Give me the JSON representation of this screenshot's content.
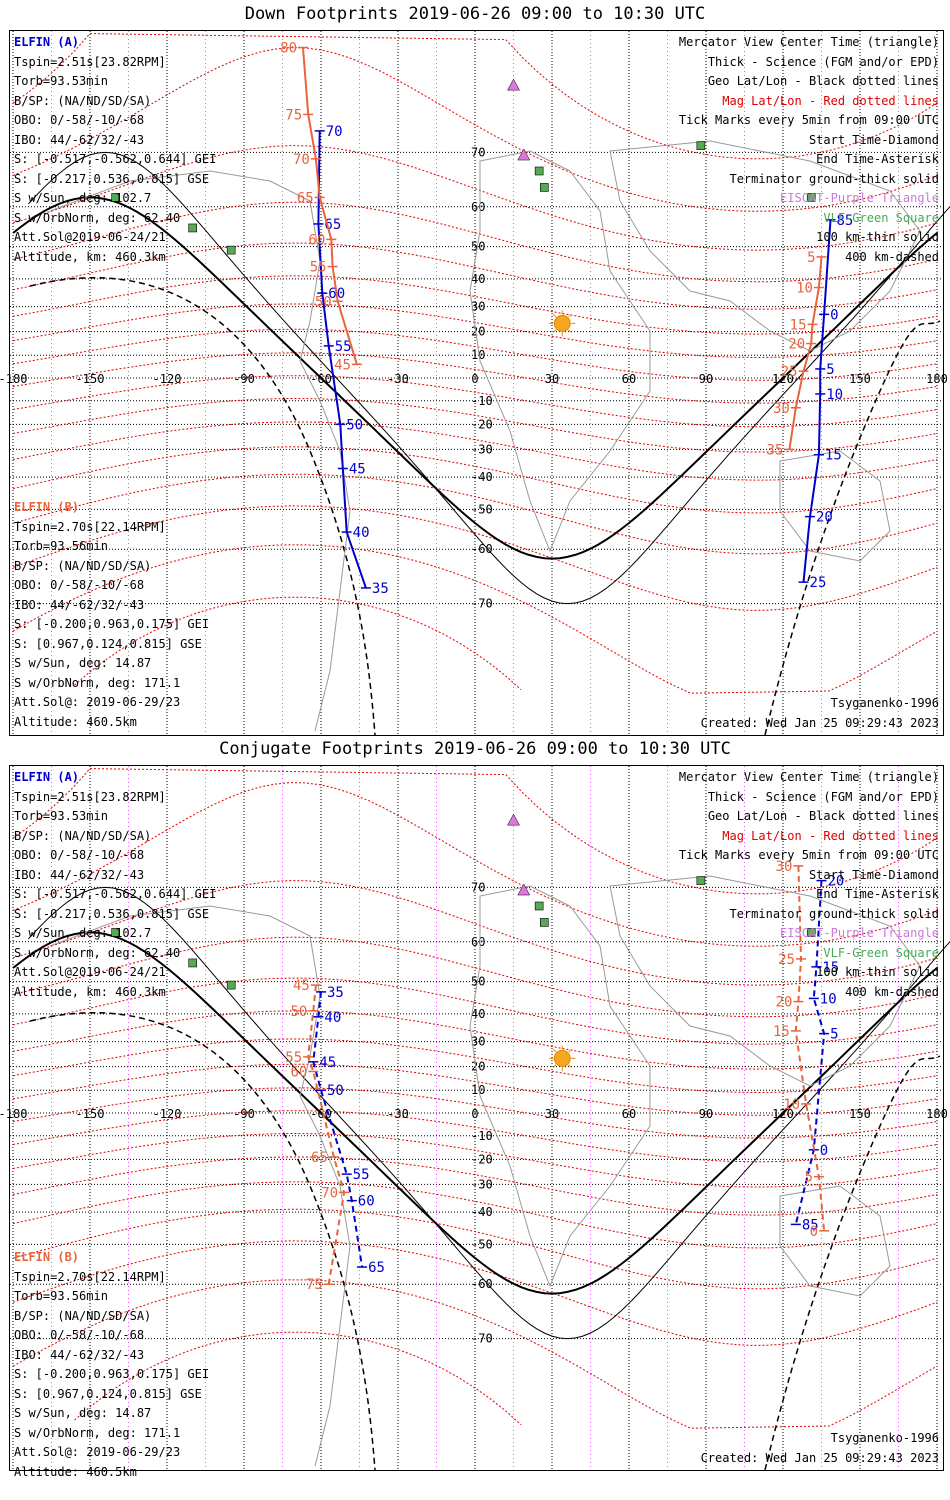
{
  "panels": [
    {
      "title": "Down Footprints 2019-06-26 09:00 to 10:30 UTC",
      "elfin_a": {
        "name": "ELFIN (A)",
        "lines": [
          "Tspin=2.51s[23.82RPM]",
          "Torb=93.53min",
          "B/SP: (NA/ND/SD/SA)",
          "OBO: 0/-58/-10/-68",
          "IBO: 44/-62/32/-43",
          "S: [-0.517,-0.562,0.644] GEI",
          "S: [-0.217,0.536,0.815] GSE",
          "S w/Sun, deg: 102.7",
          "S w/OrbNorm, deg: 62.40",
          "Att.Sol@2019-06-24/21",
          "Altitude, km: 460.3km"
        ]
      },
      "elfin_b": {
        "name": "ELFIN (B)",
        "lines": [
          "Tspin=2.70s[22.14RPM]",
          "Torb=93.56min",
          "B/SP: (NA/ND/SD/SA)",
          "OBO: 0/-58/-10/-68",
          "IBO: 44/-62/32/-43",
          "S: [-0.200,0.963,0.175] GEI",
          "S: [0.967,0.124,0.815] GSE",
          "S w/Sun, deg: 14.87",
          "S w/OrbNorm, deg: 171.1",
          "Att.Sol@: 2019-06-29/23",
          "Altitude: 460.5km"
        ]
      },
      "model": "Tsyganenko-1996",
      "created": "Created: Wed Jan 25 09:29:43 2023"
    },
    {
      "title": "Conjugate Footprints 2019-06-26 09:00 to 10:30 UTC",
      "elfin_a": {
        "name": "ELFIN (A)",
        "lines": [
          "Tspin=2.51s[23.82RPM]",
          "Torb=93.53min",
          "B/SP: (NA/ND/SD/SA)",
          "OBO: 0/-58/-10/-68",
          "IBO: 44/-62/32/-43",
          "S: [-0.517,-0.562,0.644] GEI",
          "S: [-0.217,0.536,0.815] GSE",
          "S w/Sun, deg: 102.7",
          "S w/OrbNorm, deg: 62.40",
          "Att.Sol@2019-06-24/21",
          "Altitude, km: 460.3km"
        ]
      },
      "elfin_b": {
        "name": "ELFIN (B)",
        "lines": [
          "Tspin=2.70s[22.14RPM]",
          "Torb=93.56min",
          "B/SP: (NA/ND/SD/SA)",
          "OBO: 0/-58/-10/-68",
          "IBO: 44/-62/32/-43",
          "S: [-0.200,0.963,0.175] GEI",
          "S: [0.967,0.124,0.815] GSE",
          "S w/Sun, deg: 14.87",
          "S w/OrbNorm, deg: 171.1",
          "Att.Sol@: 2019-06-29/23",
          "Altitude: 460.5km"
        ]
      },
      "model": "Tsyganenko-1996",
      "created": "Created: Wed Jan 25 09:29:43 2023"
    }
  ],
  "legend": {
    "l1": "Mercator View Center Time (triangle)",
    "l2": "Thick - Science (FGM and/or EPD)",
    "l3": "Geo Lat/Lon - Black dotted lines",
    "l4": "Mag Lat/Lon - Red dotted lines",
    "l5": "Tick Marks every 5min from 09:00 UTC",
    "l6": "Start Time-Diamond",
    "l7": "End Time-Asterisk",
    "l8": "Terminator ground-thick solid",
    "l9": "EISCAT-Purple Triangle",
    "l10": "VLF-Green Square",
    "l11": "100 km-thin solid",
    "l12": "400 km-dashed"
  },
  "axes": {
    "lon_ticks": [
      "-180",
      "-150",
      "-120",
      "-90",
      "-60",
      "-30",
      "0",
      "30",
      "60",
      "90",
      "120",
      "150",
      "180"
    ],
    "lat_ticks": [
      "70",
      "60",
      "50",
      "40",
      "30",
      "20",
      "10",
      "0",
      "-10",
      "-20",
      "-30",
      "-40",
      "-50",
      "-60",
      "-70"
    ]
  },
  "chart_data": [
    {
      "type": "map",
      "projection": "Mercator",
      "title": "Down Footprints 2019-06-26 09:00 to 10:30 UTC",
      "lon_range": [
        -180,
        180
      ],
      "sun_subsolar": [
        34,
        23.4
      ],
      "series": [
        {
          "name": "ELFIN (A)",
          "color": "#0000cc",
          "pass1_points": [
            [
              -60.5,
              73,
              "70"
            ],
            [
              -61,
              56,
              "65"
            ],
            [
              -59.5,
              35,
              "60"
            ],
            [
              -57,
              14,
              "55"
            ],
            [
              -52.5,
              -20,
              "50"
            ],
            [
              -51.5,
              -37,
              "45"
            ],
            [
              -50,
              -56,
              "40"
            ],
            [
              -42.5,
              -67.5,
              "35"
            ]
          ],
          "pass2_points": [
            [
              138.5,
              57,
              "85"
            ],
            [
              136,
              27,
              "0"
            ],
            [
              134.5,
              4,
              "5"
            ],
            [
              134.5,
              -7,
              "10"
            ],
            [
              134,
              -32,
              "15"
            ],
            [
              130.5,
              -52,
              "20"
            ],
            [
              128,
              -66.5,
              "25"
            ]
          ]
        },
        {
          "name": "ELFIN (B)",
          "color": "#e8643c",
          "pass1_points": [
            [
              -67,
              81,
              "80"
            ],
            [
              -65,
              75,
              "75"
            ],
            [
              -62,
              69,
              "70"
            ],
            [
              -60.5,
              62,
              "65"
            ],
            [
              -56,
              52,
              "60"
            ],
            [
              -55.5,
              44,
              "55"
            ],
            [
              -53.5,
              32,
              "50"
            ],
            [
              -46,
              6,
              "45"
            ]
          ],
          "pass2_points": [
            [
              135,
              47,
              "5"
            ],
            [
              134,
              37,
              "10"
            ],
            [
              131.5,
              23,
              "15"
            ],
            [
              131,
              15,
              "20"
            ],
            [
              128,
              3,
              "25"
            ],
            [
              125,
              -13,
              "30"
            ],
            [
              122.5,
              -30,
              "35"
            ]
          ]
        }
      ]
    },
    {
      "type": "map",
      "projection": "Mercator",
      "title": "Conjugate Footprints 2019-06-26 09:00 to 10:30 UTC",
      "lon_range": [
        -180,
        180
      ],
      "sun_subsolar": [
        34,
        23.4
      ],
      "series": [
        {
          "name": "ELFIN (A)",
          "color": "#0000cc",
          "pass1_points": [
            [
              -60,
              47,
              "35"
            ],
            [
              -61,
              39,
              "40"
            ],
            [
              -63,
              22,
              "45"
            ],
            [
              -60,
              10,
              "50"
            ],
            [
              -50,
              -26,
              "55"
            ],
            [
              -48,
              -36,
              "60"
            ],
            [
              -44,
              -56,
              "65"
            ]
          ],
          "pass2_points": [
            [
              135,
              71,
              "20"
            ],
            [
              133,
              54,
              "15"
            ],
            [
              132,
              45,
              "10"
            ],
            [
              136,
              33,
              "5"
            ],
            [
              132,
              -16,
              "0"
            ],
            [
              125,
              -44,
              "85"
            ]
          ]
        },
        {
          "name": "ELFIN (B)",
          "color": "#e8643c",
          "pass1_points": [
            [
              -62,
              49,
              "45"
            ],
            [
              -63,
              41,
              "50"
            ],
            [
              -65,
              24,
              "55"
            ],
            [
              -63,
              18,
              "60"
            ],
            [
              -55,
              -19,
              "65"
            ],
            [
              -51,
              -33,
              "70"
            ],
            [
              -57,
              -60,
              "75"
            ]
          ],
          "pass2_points": [
            [
              126,
              73,
              "30"
            ],
            [
              127,
              56,
              "25"
            ],
            [
              126,
              44,
              "20"
            ],
            [
              125,
              34,
              "15"
            ],
            [
              129,
              4,
              "10"
            ],
            [
              134,
              -27,
              "5"
            ],
            [
              136,
              -46,
              "0"
            ]
          ]
        }
      ]
    }
  ]
}
